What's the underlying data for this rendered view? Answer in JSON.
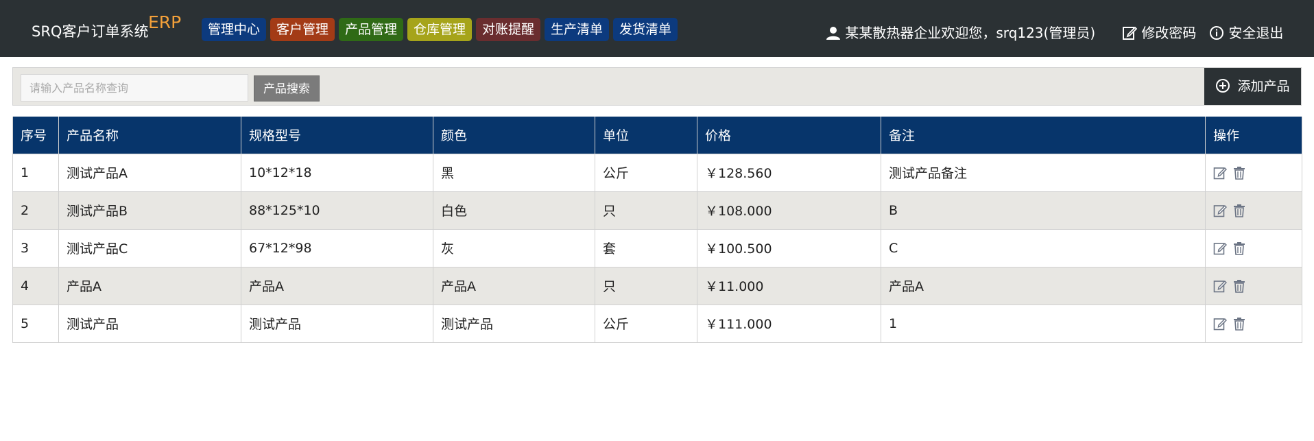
{
  "app": {
    "title": "SRQ客户订单系统",
    "title_suffix": "ERP",
    "accent_color": "#f4a13a",
    "bar_color": "#2b3134"
  },
  "nav": [
    {
      "label": "管理中心",
      "color": "#0c3a7e"
    },
    {
      "label": "客户管理",
      "color": "#a33b16"
    },
    {
      "label": "产品管理",
      "color": "#2f6a16"
    },
    {
      "label": "仓库管理",
      "color": "#a6a41a"
    },
    {
      "label": "对账提醒",
      "color": "#6a2d2f"
    },
    {
      "label": "生产清单",
      "color": "#0c3a7e"
    },
    {
      "label": "发货清单",
      "color": "#0c3a7e"
    }
  ],
  "user": {
    "icon": "user-icon",
    "welcome": "某某散热器企业欢迎您，srq123(管理员)",
    "change_password": "修改密码",
    "change_password_icon": "edit-icon",
    "logout": "安全退出",
    "logout_icon": "info-icon"
  },
  "search": {
    "placeholder": "请输入产品名称查询",
    "value": "",
    "button": "产品搜索"
  },
  "toolbar": {
    "add_label": "添加产品",
    "add_icon": "plus-circle-icon"
  },
  "table": {
    "header_color": "#07356b",
    "columns": [
      "序号",
      "产品名称",
      "规格型号",
      "颜色",
      "单位",
      "价格",
      "备注",
      "操作"
    ],
    "rows": [
      {
        "no": "1",
        "name": "测试产品A",
        "spec": "10*12*18",
        "color": "黑",
        "unit": "公斤",
        "price": "￥128.560",
        "note": "测试产品备注"
      },
      {
        "no": "2",
        "name": "测试产品B",
        "spec": "88*125*10",
        "color": "白色",
        "unit": "只",
        "price": "￥108.000",
        "note": "B"
      },
      {
        "no": "3",
        "name": "测试产品C",
        "spec": "67*12*98",
        "color": "灰",
        "unit": "套",
        "price": "￥100.500",
        "note": "C"
      },
      {
        "no": "4",
        "name": "产品A",
        "spec": "产品A",
        "color": "产品A",
        "unit": "只",
        "price": "￥11.000",
        "note": "产品A"
      },
      {
        "no": "5",
        "name": "测试产品",
        "spec": "测试产品",
        "color": "测试产品",
        "unit": "公斤",
        "price": "￥111.000",
        "note": "1"
      }
    ],
    "row_icons": [
      "edit-icon",
      "trash-icon"
    ]
  }
}
